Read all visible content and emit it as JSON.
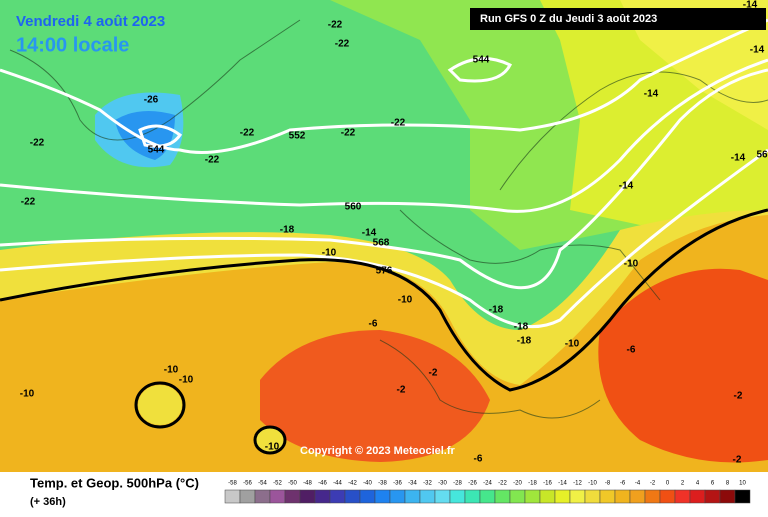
{
  "header": {
    "date": "Vendredi 4 août 2023",
    "time": "14:00 locale",
    "run": "Run GFS 0 Z du Jeudi 3 août 2023"
  },
  "copyright": "Copyright © 2023 Meteociel.fr",
  "footer": {
    "title": "Temp. et Geop. 500hPa (°C)",
    "lead": "(+ 36h)"
  },
  "legend": {
    "labels": [
      -58,
      -56,
      -54,
      -52,
      -50,
      -48,
      -46,
      -44,
      -42,
      -40,
      -38,
      -36,
      -34,
      -32,
      -30,
      -28,
      -26,
      -24,
      -22,
      -20,
      -18,
      -16,
      -14,
      -12,
      -10,
      -8,
      -6,
      -4,
      -2,
      0,
      2,
      4,
      6,
      8,
      10
    ],
    "colors": [
      "#c8c8c8",
      "#a0a0a0",
      "#8c6e8c",
      "#9b559b",
      "#6e326e",
      "#501e64",
      "#46288c",
      "#3c3cb4",
      "#2850c8",
      "#1e64dc",
      "#1e82f0",
      "#2896f0",
      "#3cb4f0",
      "#50c8f0",
      "#64dcf0",
      "#46e6dc",
      "#3ce6b4",
      "#46e68c",
      "#64e664",
      "#82e650",
      "#a0e63c",
      "#c8e628",
      "#e6f028",
      "#f0f046",
      "#f0dc3c",
      "#f0c828",
      "#f0b41e",
      "#f0a01e",
      "#f07814",
      "#f05014",
      "#f03228",
      "#dc1e1e",
      "#b41414",
      "#8c0a0a",
      "#000000"
    ]
  },
  "map_labels": [
    "-22",
    "-22",
    "-26",
    "-22",
    "544",
    "-22",
    "552",
    "-22",
    "-22",
    "-22",
    "544",
    "-14",
    "-14",
    "-14",
    "-14",
    "56",
    "-14",
    "-22",
    "560",
    "-18",
    "-14",
    "568",
    "-10",
    "576",
    "-10",
    "-10",
    "-6",
    "-18",
    "-18",
    "-18",
    "-10",
    "-6",
    "-10",
    "-10",
    "-2",
    "-2",
    "-10",
    "-2",
    "-10",
    "-6",
    "-2"
  ]
}
